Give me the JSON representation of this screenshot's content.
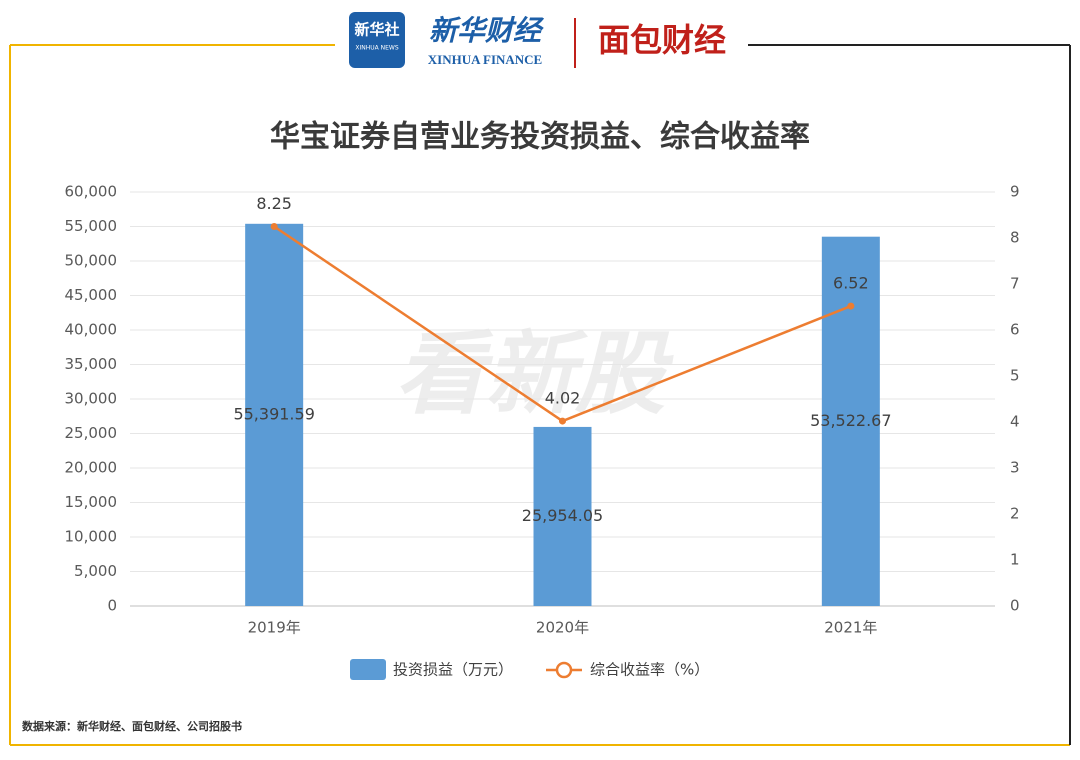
{
  "header": {
    "logo1": "新华社",
    "logo1_sub": "XINHUA NEWS",
    "logo2": "新华财经",
    "logo2_sub": "XINHUA FINANCE",
    "logo3": "面包财经"
  },
  "chart_data": {
    "type": "bar-line",
    "title": "华宝证券自营业务投资损益、综合收益率",
    "watermark": "看新股",
    "categories": [
      "2019年",
      "2020年",
      "2021年"
    ],
    "series": [
      {
        "name": "投资损益（万元）",
        "type": "bar",
        "color": "#5b9bd5",
        "values": [
          55391.59,
          25954.05,
          53522.67
        ],
        "value_labels": [
          "55,391.59",
          "25,954.05",
          "53,522.67"
        ]
      },
      {
        "name": "综合收益率（%）",
        "type": "line",
        "axis": "y2",
        "color": "#ed7d31",
        "values": [
          8.25,
          4.02,
          6.52
        ]
      }
    ],
    "ylim": [
      0,
      60000
    ],
    "yticks": [
      0,
      {
        "value": 5000,
        "label": "5,000"
      },
      {
        "value": 10000,
        "label": "10,000"
      },
      {
        "value": 15000,
        "label": "15,000"
      },
      {
        "value": 20000,
        "label": "20,000"
      },
      {
        "value": 25000,
        "label": "25,000"
      },
      {
        "value": 30000,
        "label": "30,000"
      },
      {
        "value": 35000,
        "label": "35,000"
      },
      {
        "value": 40000,
        "label": "40,000"
      },
      {
        "value": 45000,
        "label": "45,000"
      },
      {
        "value": 50000,
        "label": "50,000"
      },
      {
        "value": 55000,
        "label": "55,000"
      },
      {
        "value": 60000,
        "label": "60,000"
      }
    ],
    "y2lim": [
      0,
      9
    ],
    "y2ticks": [
      0,
      1,
      2,
      3,
      4,
      5,
      6,
      7,
      8,
      9
    ],
    "grid": true,
    "legend": "bottom"
  },
  "footer": {
    "source": "数据来源：新华财经、面包财经、公司招股书"
  }
}
